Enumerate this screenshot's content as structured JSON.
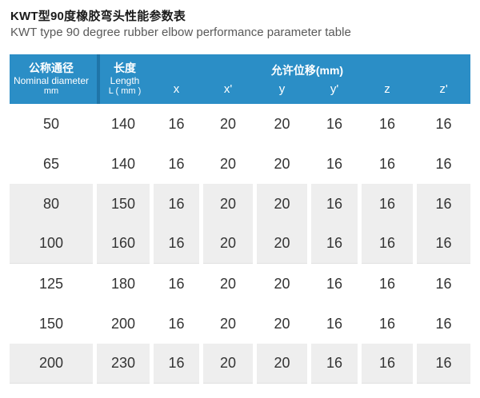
{
  "page": {
    "title_zh": "KWT型90度橡胶弯头性能参数表",
    "title_en": "KWT type 90 degree rubber elbow performance parameter table"
  },
  "chart_data": {
    "type": "table",
    "title": "KWT型90度橡胶弯头性能参数表",
    "subtitle": "KWT type 90 degree rubber elbow performance parameter table",
    "header": {
      "nominal_diameter": {
        "zh": "公称通径",
        "en": "Nominal diameter",
        "unit": "mm"
      },
      "length": {
        "zh": "长度",
        "en": "Length",
        "unit": "L ( mm )"
      },
      "displacement_group_label": "允许位移(mm)",
      "axis_labels": [
        "x",
        "x'",
        "y",
        "y'",
        "z",
        "z'"
      ]
    },
    "rows": [
      [
        "50",
        "140",
        "16",
        "20",
        "20",
        "16",
        "16",
        "16"
      ],
      [
        "65",
        "140",
        "16",
        "20",
        "20",
        "16",
        "16",
        "16"
      ],
      [
        "80",
        "150",
        "16",
        "20",
        "20",
        "16",
        "16",
        "16"
      ],
      [
        "100",
        "160",
        "16",
        "20",
        "20",
        "16",
        "16",
        "16"
      ],
      [
        "125",
        "180",
        "16",
        "20",
        "20",
        "16",
        "16",
        "16"
      ],
      [
        "150",
        "200",
        "16",
        "20",
        "20",
        "16",
        "16",
        "16"
      ],
      [
        "200",
        "230",
        "16",
        "20",
        "20",
        "16",
        "16",
        "16"
      ]
    ]
  },
  "colors": {
    "header_bg": "#2b8ec6",
    "header_divider": "#1f75a8",
    "header_text": "#ffffff",
    "row_alt_bg": "#eeeeee",
    "body_text": "#333333"
  }
}
